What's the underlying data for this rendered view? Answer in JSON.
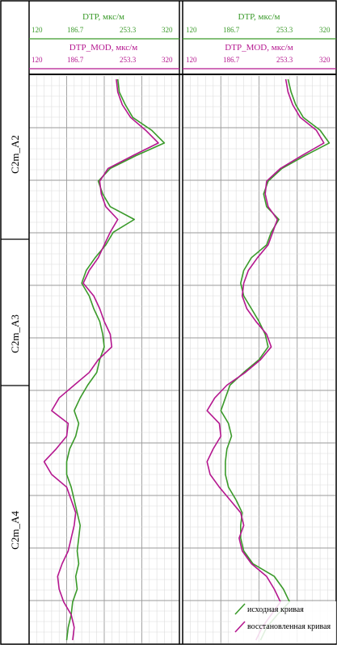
{
  "tracks": [
    {
      "curve1": {
        "name": "DTP, мкс/м",
        "ticks": [
          "120",
          "186.7",
          "253.3",
          "320"
        ],
        "color": "#3a9a2a"
      },
      "curve2": {
        "name": "DTP_MOD, мкс/м",
        "ticks": [
          "120",
          "186.7",
          "253.3",
          "320"
        ],
        "color": "#b5178f"
      }
    },
    {
      "curve1": {
        "name": "DTP, мкс/м",
        "ticks": [
          "120",
          "186.7",
          "253.3",
          "320"
        ],
        "color": "#3a9a2a"
      },
      "curve2": {
        "name": "DTP_MOD, мкс/м",
        "ticks": [
          "120",
          "186.7",
          "253.3",
          "320"
        ],
        "color": "#b5178f"
      }
    }
  ],
  "zones": [
    {
      "name": "C2m_A2"
    },
    {
      "name": "C2m_A3"
    },
    {
      "name": "C2m_A4"
    }
  ],
  "legend": {
    "original": "исходная кривая",
    "restored": "восстановленная кривая"
  },
  "chart_data": [
    {
      "type": "line",
      "xlim": [
        120,
        320
      ],
      "y_samples": 45,
      "series": [
        {
          "name": "DTP, мкс/м",
          "color": "#3a9a2a",
          "values": [
            238,
            240,
            248,
            258,
            283,
            300,
            262,
            228,
            212,
            218,
            228,
            260,
            232,
            222,
            208,
            196,
            190,
            200,
            206,
            214,
            218,
            220,
            214,
            210,
            198,
            188,
            180,
            186,
            182,
            174,
            170,
            170,
            176,
            180,
            184,
            188,
            186,
            184,
            186,
            182,
            184,
            178,
            176,
            172,
            170
          ]
        },
        {
          "name": "DTP_MOD, мкс/м",
          "color": "#b5178f",
          "values": [
            236,
            238,
            244,
            255,
            275,
            292,
            258,
            225,
            214,
            216,
            222,
            238,
            228,
            220,
            212,
            200,
            192,
            206,
            214,
            220,
            228,
            230,
            212,
            200,
            180,
            160,
            150,
            172,
            170,
            156,
            140,
            150,
            170,
            176,
            182,
            180,
            176,
            172,
            164,
            158,
            160,
            166,
            176,
            180,
            178
          ]
        }
      ]
    },
    {
      "type": "line",
      "xlim": [
        120,
        320
      ],
      "y_samples": 45,
      "series": [
        {
          "name": "DTP, мкс/м",
          "color": "#3a9a2a",
          "values": [
            258,
            262,
            268,
            278,
            300,
            312,
            280,
            250,
            232,
            226,
            230,
            246,
            236,
            230,
            210,
            200,
            196,
            200,
            210,
            220,
            228,
            232,
            220,
            200,
            182,
            176,
            170,
            180,
            184,
            178,
            176,
            176,
            180,
            190,
            198,
            196,
            196,
            200,
            212,
            240,
            252,
            260,
            244,
            230,
            222
          ]
        },
        {
          "name": "DTP_MOD, мкс/м",
          "color": "#b5178f",
          "values": [
            255,
            258,
            264,
            274,
            295,
            305,
            276,
            248,
            230,
            228,
            232,
            244,
            238,
            232,
            218,
            206,
            200,
            198,
            204,
            216,
            230,
            236,
            222,
            202,
            178,
            162,
            152,
            168,
            170,
            160,
            152,
            156,
            168,
            182,
            196,
            200,
            194,
            198,
            210,
            230,
            240,
            248,
            236,
            224,
            216
          ]
        }
      ]
    }
  ]
}
